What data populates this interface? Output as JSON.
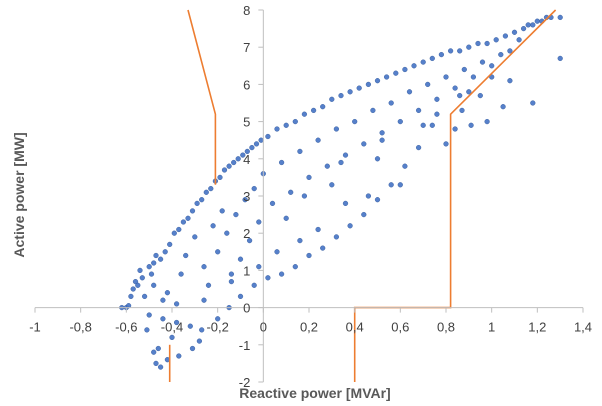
{
  "chart_data": {
    "type": "scatter",
    "title": "",
    "xlabel": "Reactive power [MVAr]",
    "ylabel": "Active power [MW]",
    "xlim": [
      -1,
      1.4
    ],
    "ylim": [
      -2,
      8
    ],
    "x_ticks": [
      -1,
      -0.8,
      -0.6,
      -0.4,
      -0.2,
      0,
      0.2,
      0.4,
      0.6,
      0.8,
      1,
      1.2,
      1.4
    ],
    "x_tick_labels": [
      "-1",
      "-0,8",
      "-0,6",
      "-0,4",
      "-0,2",
      "0",
      "0,2",
      "0,4",
      "0,6",
      "0,8",
      "1",
      "1,2",
      "1,4"
    ],
    "y_ticks": [
      -2,
      -1,
      0,
      1,
      2,
      3,
      4,
      5,
      6,
      7,
      8
    ],
    "y_tick_labels": [
      "-2",
      "-1",
      "0",
      "1",
      "2",
      "3",
      "4",
      "5",
      "6",
      "7",
      "8"
    ],
    "grid": false,
    "legend": "none",
    "marker_color": "#4472c4",
    "boundary_color": "#ed7d31",
    "boundary_lines": [
      [
        [
          -0.33,
          8
        ],
        [
          -0.21,
          5.2
        ],
        [
          -0.21,
          3.3
        ]
      ],
      [
        [
          -0.41,
          -2
        ],
        [
          -0.41,
          -1
        ]
      ],
      [
        [
          0.4,
          -2
        ],
        [
          0.4,
          0
        ],
        [
          0.82,
          0
        ],
        [
          0.82,
          5.2
        ],
        [
          1.28,
          8
        ]
      ]
    ],
    "series": [
      {
        "values": [
          [
            -0.62,
            0.0
          ],
          [
            -0.6,
            0.0
          ],
          [
            -0.59,
            0.05
          ],
          [
            -0.55,
            0.6
          ],
          [
            -0.54,
            1.0
          ],
          [
            -0.52,
            0.3
          ],
          [
            -0.51,
            -0.6
          ],
          [
            -0.5,
            -0.2
          ],
          [
            -0.49,
            0.9
          ],
          [
            -0.48,
            1.2
          ],
          [
            -0.47,
            -1.5
          ],
          [
            -0.46,
            -1.1
          ],
          [
            -0.45,
            1.3
          ],
          [
            -0.44,
            -0.3
          ],
          [
            -0.43,
            1.5
          ],
          [
            -0.42,
            0.4
          ],
          [
            -0.41,
            1.7
          ],
          [
            -0.4,
            -0.8
          ],
          [
            -0.39,
            2.0
          ],
          [
            -0.38,
            0.1
          ],
          [
            -0.37,
            2.1
          ],
          [
            -0.36,
            0.9
          ],
          [
            -0.35,
            2.3
          ],
          [
            -0.34,
            1.4
          ],
          [
            -0.33,
            2.4
          ],
          [
            -0.32,
            -0.5
          ],
          [
            -0.31,
            2.6
          ],
          [
            -0.3,
            1.9
          ],
          [
            -0.29,
            2.8
          ],
          [
            -0.28,
            -0.9
          ],
          [
            -0.27,
            2.9
          ],
          [
            -0.26,
            1.1
          ],
          [
            -0.25,
            3.1
          ],
          [
            -0.24,
            0.6
          ],
          [
            -0.23,
            3.2
          ],
          [
            -0.22,
            2.2
          ],
          [
            -0.21,
            3.4
          ],
          [
            -0.2,
            1.5
          ],
          [
            -0.19,
            3.5
          ],
          [
            -0.18,
            2.6
          ],
          [
            -0.17,
            3.7
          ],
          [
            -0.16,
            2.0
          ],
          [
            -0.15,
            3.8
          ],
          [
            -0.14,
            0.9
          ],
          [
            -0.13,
            3.9
          ],
          [
            -0.12,
            2.5
          ],
          [
            -0.11,
            4.0
          ],
          [
            -0.1,
            1.3
          ],
          [
            -0.09,
            4.1
          ],
          [
            -0.08,
            2.9
          ],
          [
            -0.07,
            4.2
          ],
          [
            -0.06,
            1.8
          ],
          [
            -0.05,
            4.3
          ],
          [
            -0.04,
            3.2
          ],
          [
            -0.03,
            4.4
          ],
          [
            -0.02,
            2.3
          ],
          [
            -0.01,
            4.5
          ],
          [
            0.0,
            3.6
          ],
          [
            0.02,
            4.6
          ],
          [
            0.04,
            2.8
          ],
          [
            0.06,
            4.8
          ],
          [
            0.08,
            3.9
          ],
          [
            0.1,
            4.9
          ],
          [
            0.12,
            3.1
          ],
          [
            0.14,
            5.0
          ],
          [
            0.16,
            4.2
          ],
          [
            0.18,
            5.2
          ],
          [
            0.2,
            3.5
          ],
          [
            0.22,
            5.3
          ],
          [
            0.24,
            4.5
          ],
          [
            0.26,
            5.4
          ],
          [
            0.28,
            3.8
          ],
          [
            0.3,
            5.6
          ],
          [
            0.32,
            4.8
          ],
          [
            0.34,
            5.7
          ],
          [
            0.36,
            4.1
          ],
          [
            0.38,
            5.8
          ],
          [
            0.4,
            5.0
          ],
          [
            0.42,
            5.9
          ],
          [
            0.44,
            4.4
          ],
          [
            0.46,
            6.0
          ],
          [
            0.48,
            5.3
          ],
          [
            0.5,
            6.1
          ],
          [
            0.52,
            4.7
          ],
          [
            0.54,
            6.2
          ],
          [
            0.56,
            5.5
          ],
          [
            0.58,
            6.3
          ],
          [
            0.6,
            5.0
          ],
          [
            0.62,
            6.4
          ],
          [
            0.64,
            5.8
          ],
          [
            0.66,
            6.5
          ],
          [
            0.68,
            5.3
          ],
          [
            0.7,
            6.6
          ],
          [
            0.72,
            6.0
          ],
          [
            0.74,
            6.7
          ],
          [
            0.76,
            5.6
          ],
          [
            0.78,
            6.8
          ],
          [
            0.8,
            6.2
          ],
          [
            0.82,
            6.9
          ],
          [
            0.84,
            5.9
          ],
          [
            0.86,
            6.9
          ],
          [
            0.88,
            6.4
          ],
          [
            0.9,
            7.0
          ],
          [
            0.92,
            6.2
          ],
          [
            0.94,
            7.1
          ],
          [
            0.96,
            6.6
          ],
          [
            0.98,
            7.1
          ],
          [
            1.0,
            6.5
          ],
          [
            1.02,
            7.2
          ],
          [
            1.04,
            6.8
          ],
          [
            1.06,
            7.3
          ],
          [
            1.08,
            6.9
          ],
          [
            1.1,
            7.4
          ],
          [
            1.12,
            7.2
          ],
          [
            1.14,
            7.5
          ],
          [
            1.16,
            7.6
          ],
          [
            1.18,
            7.6
          ],
          [
            1.2,
            7.7
          ],
          [
            1.22,
            7.7
          ],
          [
            1.24,
            7.8
          ],
          [
            1.26,
            7.8
          ],
          [
            1.3,
            7.8
          ],
          [
            1.3,
            6.7
          ],
          [
            1.18,
            5.5
          ],
          [
            1.08,
            6.1
          ],
          [
            1.05,
            5.4
          ],
          [
            0.98,
            5.0
          ],
          [
            0.95,
            5.7
          ],
          [
            0.91,
            4.9
          ],
          [
            0.87,
            5.3
          ],
          [
            0.84,
            4.8
          ],
          [
            0.8,
            4.4
          ],
          [
            0.74,
            4.9
          ],
          [
            0.68,
            4.3
          ],
          [
            0.62,
            3.8
          ],
          [
            0.56,
            3.3
          ],
          [
            0.5,
            2.9
          ],
          [
            0.44,
            2.5
          ],
          [
            0.38,
            2.2
          ],
          [
            0.32,
            1.9
          ],
          [
            0.26,
            1.6
          ],
          [
            0.2,
            1.4
          ],
          [
            0.14,
            1.1
          ],
          [
            0.08,
            0.9
          ],
          [
            0.02,
            0.8
          ],
          [
            -0.04,
            0.6
          ],
          [
            -0.1,
            0.3
          ],
          [
            -0.15,
            0.0
          ],
          [
            -0.2,
            -0.3
          ],
          [
            -0.27,
            -0.6
          ],
          [
            -0.31,
            -1.1
          ],
          [
            -0.37,
            -1.3
          ],
          [
            -0.42,
            -1.4
          ],
          [
            -0.45,
            -1.6
          ],
          [
            -0.48,
            -1.2
          ],
          [
            0.1,
            2.4
          ],
          [
            0.3,
            3.3
          ],
          [
            0.5,
            4.0
          ],
          [
            0.7,
            4.9
          ],
          [
            0.9,
            5.8
          ],
          [
            0.6,
            3.3
          ],
          [
            0.46,
            3.0
          ],
          [
            0.36,
            2.8
          ],
          [
            0.24,
            2.1
          ],
          [
            0.16,
            1.8
          ],
          [
            0.06,
            1.5
          ],
          [
            -0.02,
            1.1
          ],
          [
            -0.14,
            0.7
          ],
          [
            -0.26,
            0.2
          ],
          [
            -0.38,
            -0.4
          ],
          [
            -0.44,
            0.2
          ],
          [
            -0.48,
            0.6
          ],
          [
            0.18,
            3.0
          ],
          [
            0.34,
            3.9
          ],
          [
            0.52,
            4.5
          ],
          [
            0.76,
            5.2
          ],
          [
            0.86,
            5.7
          ],
          [
            1.0,
            6.2
          ],
          [
            -0.53,
            0.8
          ],
          [
            -0.56,
            0.7
          ],
          [
            -0.57,
            0.5
          ],
          [
            -0.58,
            0.3
          ],
          [
            -0.5,
            1.1
          ],
          [
            -0.47,
            1.4
          ]
        ]
      }
    ]
  }
}
